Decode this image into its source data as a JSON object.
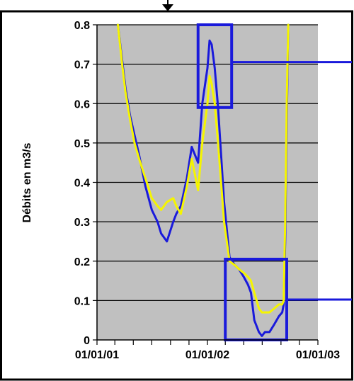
{
  "chart_data": {
    "type": "line",
    "title": "",
    "xlabel": "",
    "ylabel": "Débits en m3/s",
    "ylim": [
      0,
      0.8
    ],
    "yticks": [
      "0",
      "0.1",
      "0.2",
      "0.3",
      "0.4",
      "0.5",
      "0.6",
      "0.7",
      "0.8"
    ],
    "xticks": [
      "01/01/01",
      "01/01/02",
      "01/01/03"
    ],
    "xlim": [
      "2001-01-01",
      "2003-01-01"
    ],
    "grid": "horizontal",
    "plot_background": "#c0c0c0",
    "series": [
      {
        "color": "#1a1adb",
        "x": [
          "2001-03-11",
          "2001-03-25",
          "2001-04-05",
          "2001-04-20",
          "2001-05-05",
          "2001-05-20",
          "2001-06-10",
          "2001-07-01",
          "2001-07-20",
          "2001-08-01",
          "2001-08-20",
          "2001-09-10",
          "2001-09-20",
          "2001-10-05",
          "2001-10-25",
          "2001-11-10",
          "2001-12-01",
          "2001-12-15",
          "2002-01-01",
          "2002-01-08",
          "2002-01-15",
          "2002-01-25",
          "2002-02-05",
          "2002-02-25",
          "2002-03-15",
          "2002-04-01",
          "2002-04-15",
          "2002-05-01",
          "2002-05-15",
          "2002-05-25",
          "2002-06-05",
          "2002-06-20",
          "2002-06-30",
          "2002-07-10",
          "2002-07-25",
          "2002-08-10",
          "2002-08-25",
          "2002-09-05",
          "2002-09-10",
          "2002-09-15",
          "2002-09-20",
          "2002-09-25"
        ],
        "y": [
          0.8,
          0.71,
          0.64,
          0.57,
          0.52,
          0.47,
          0.39,
          0.33,
          0.3,
          0.27,
          0.25,
          0.3,
          0.32,
          0.34,
          0.41,
          0.49,
          0.45,
          0.6,
          0.69,
          0.76,
          0.75,
          0.69,
          0.59,
          0.35,
          0.21,
          0.19,
          0.18,
          0.16,
          0.14,
          0.12,
          0.05,
          0.02,
          0.01,
          0.02,
          0.02,
          0.04,
          0.06,
          0.07,
          0.09,
          0.25,
          0.55,
          0.8
        ]
      },
      {
        "color": "#f5f500",
        "x": [
          "2001-03-11",
          "2001-03-25",
          "2001-04-05",
          "2001-04-20",
          "2001-05-05",
          "2001-05-20",
          "2001-06-10",
          "2001-07-01",
          "2001-07-20",
          "2001-08-01",
          "2001-08-20",
          "2001-09-10",
          "2001-09-20",
          "2001-10-05",
          "2001-10-25",
          "2001-11-10",
          "2001-12-01",
          "2001-12-15",
          "2002-01-01",
          "2002-01-08",
          "2002-01-15",
          "2002-01-25",
          "2002-02-05",
          "2002-02-25",
          "2002-03-15",
          "2002-04-01",
          "2002-04-15",
          "2002-05-01",
          "2002-05-15",
          "2002-05-25",
          "2002-06-05",
          "2002-06-20",
          "2002-06-30",
          "2002-07-10",
          "2002-07-25",
          "2002-08-10",
          "2002-08-25",
          "2002-09-05",
          "2002-09-10",
          "2002-09-15",
          "2002-09-20",
          "2002-09-25"
        ],
        "y": [
          0.8,
          0.7,
          0.63,
          0.56,
          0.5,
          0.46,
          0.41,
          0.36,
          0.34,
          0.33,
          0.35,
          0.36,
          0.34,
          0.32,
          0.39,
          0.46,
          0.38,
          0.5,
          0.6,
          0.67,
          0.65,
          0.6,
          0.5,
          0.3,
          0.2,
          0.19,
          0.18,
          0.17,
          0.16,
          0.15,
          0.12,
          0.08,
          0.07,
          0.07,
          0.07,
          0.08,
          0.09,
          0.09,
          0.1,
          0.3,
          0.6,
          0.8
        ]
      }
    ],
    "highlight_boxes": [
      {
        "x": [
          "2001-12-01",
          "2002-03-22"
        ],
        "y": [
          0.59,
          0.8
        ],
        "color": "#1a1adb"
      },
      {
        "x": [
          "2002-03-01",
          "2002-09-20"
        ],
        "y": [
          0.0,
          0.205
        ],
        "color": "#1a1adb"
      }
    ]
  }
}
